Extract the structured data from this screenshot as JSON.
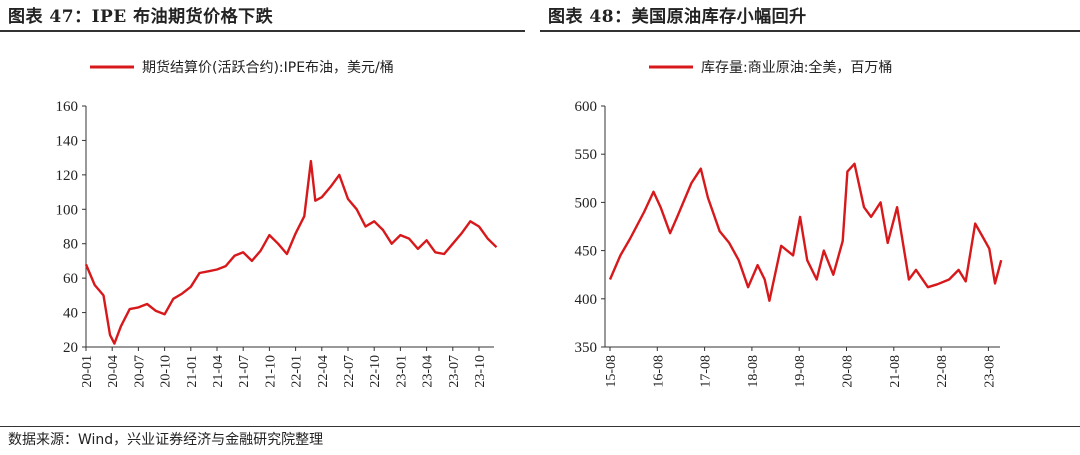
{
  "page": {
    "left_title": "图表 47：IPE 布油期货价格下跌",
    "right_title": "图表 48：美国原油库存小幅回升",
    "source": "数据来源：Wind，兴业证券经济与金融研究院整理"
  },
  "colors": {
    "series": "#d7191c",
    "axis": "#333333",
    "text": "#222222"
  },
  "chart_data": [
    {
      "type": "line",
      "title": "",
      "xlabel": "",
      "ylabel": "",
      "ylim": [
        20,
        160
      ],
      "yticks": [
        20,
        40,
        60,
        80,
        100,
        120,
        140,
        160
      ],
      "x_tick_labels": [
        "20-01",
        "20-04",
        "20-07",
        "20-10",
        "21-01",
        "21-04",
        "21-07",
        "21-10",
        "22-01",
        "22-04",
        "22-07",
        "22-10",
        "23-01",
        "23-04",
        "23-07",
        "23-10"
      ],
      "x_range": [
        "2020-01",
        "2023-12"
      ],
      "legend_position": "top",
      "grid": false,
      "series": [
        {
          "name": "期货结算价(活跃合约):IPE布油，美元/桶",
          "x": [
            "2020-01",
            "2020-02",
            "2020-03",
            "2020-04a",
            "2020-04b",
            "2020-05",
            "2020-06",
            "2020-07",
            "2020-08",
            "2020-09",
            "2020-10",
            "2020-11",
            "2020-12",
            "2021-01",
            "2021-02",
            "2021-03",
            "2021-04",
            "2021-05",
            "2021-06",
            "2021-07",
            "2021-08",
            "2021-09",
            "2021-10",
            "2021-11",
            "2021-12",
            "2022-01",
            "2022-02",
            "2022-03a",
            "2022-03b",
            "2022-04",
            "2022-05",
            "2022-06",
            "2022-07",
            "2022-08",
            "2022-09",
            "2022-10",
            "2022-11",
            "2022-12",
            "2023-01",
            "2023-02",
            "2023-03",
            "2023-04",
            "2023-05",
            "2023-06",
            "2023-07",
            "2023-08",
            "2023-09",
            "2023-10",
            "2023-11",
            "2023-12"
          ],
          "values": [
            68,
            56,
            50,
            27,
            22,
            32,
            42,
            43,
            45,
            41,
            39,
            48,
            51,
            55,
            63,
            64,
            65,
            67,
            73,
            75,
            70,
            76,
            85,
            80,
            74,
            86,
            96,
            128,
            105,
            107,
            113,
            120,
            106,
            100,
            90,
            93,
            88,
            80,
            85,
            83,
            77,
            82,
            75,
            74,
            80,
            86,
            93,
            90,
            83,
            78
          ]
        }
      ]
    },
    {
      "type": "line",
      "title": "",
      "xlabel": "",
      "ylabel": "",
      "ylim": [
        350,
        600
      ],
      "yticks": [
        350,
        400,
        450,
        500,
        550,
        600
      ],
      "x_tick_labels": [
        "15-08",
        "16-08",
        "17-08",
        "18-08",
        "19-08",
        "20-08",
        "21-08",
        "22-08",
        "23-08"
      ],
      "x_range": [
        "2015-08",
        "2023-12"
      ],
      "legend_position": "top",
      "grid": false,
      "series": [
        {
          "name": "库存量:商业原油:全美，百万桶",
          "x": [
            2015.58,
            2015.8,
            2016.0,
            2016.3,
            2016.5,
            2016.65,
            2016.85,
            2017.0,
            2017.3,
            2017.5,
            2017.65,
            2017.9,
            2018.1,
            2018.3,
            2018.5,
            2018.7,
            2018.85,
            2018.95,
            2019.2,
            2019.45,
            2019.6,
            2019.75,
            2019.95,
            2020.1,
            2020.3,
            2020.5,
            2020.6,
            2020.75,
            2020.95,
            2021.1,
            2021.3,
            2021.45,
            2021.65,
            2021.9,
            2022.05,
            2022.3,
            2022.5,
            2022.75,
            2022.95,
            2023.1,
            2023.3,
            2023.45,
            2023.6,
            2023.72,
            2023.85
          ],
          "values": [
            420,
            445,
            462,
            490,
            511,
            495,
            468,
            485,
            520,
            535,
            505,
            470,
            458,
            440,
            412,
            435,
            420,
            398,
            455,
            445,
            485,
            440,
            420,
            450,
            425,
            460,
            532,
            540,
            495,
            485,
            500,
            458,
            495,
            420,
            430,
            412,
            415,
            420,
            430,
            418,
            478,
            465,
            452,
            416,
            440
          ]
        }
      ]
    }
  ]
}
